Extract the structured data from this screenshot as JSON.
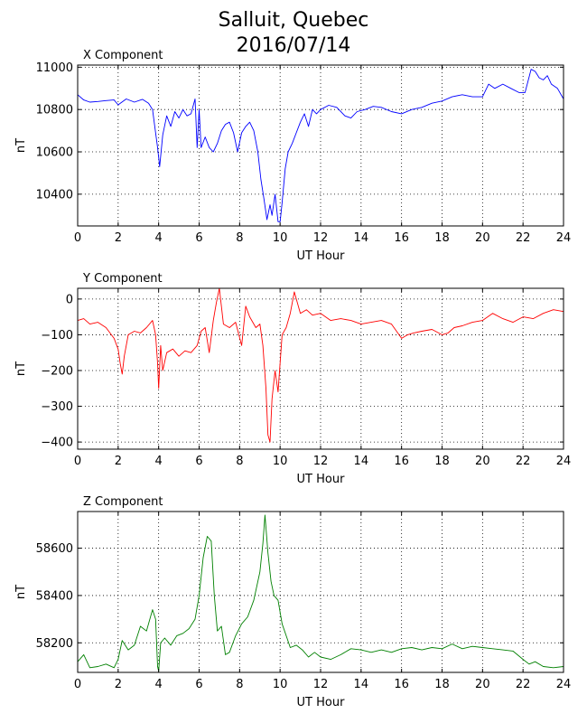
{
  "figure": {
    "title_line1": "Salluit, Quebec",
    "title_line2": "2016/07/14"
  },
  "chart_data": [
    {
      "type": "line",
      "subtitle": "X Component",
      "xlabel": "UT Hour",
      "ylabel": "nT",
      "xlim": [
        0,
        24
      ],
      "ylim": [
        10250,
        11010
      ],
      "xticks": [
        0,
        2,
        4,
        6,
        8,
        10,
        12,
        14,
        16,
        18,
        20,
        22,
        24
      ],
      "yticks": [
        10400,
        10600,
        10800,
        11000
      ],
      "grid": true,
      "color": "#0000ff",
      "x": [
        0,
        0.3,
        0.6,
        1,
        1.4,
        1.8,
        2,
        2.4,
        2.8,
        3.2,
        3.5,
        3.7,
        3.85,
        3.95,
        4.05,
        4.2,
        4.4,
        4.6,
        4.8,
        5,
        5.2,
        5.4,
        5.6,
        5.8,
        5.9,
        6.0,
        6.1,
        6.3,
        6.5,
        6.7,
        6.9,
        7.1,
        7.3,
        7.5,
        7.7,
        7.9,
        8.1,
        8.3,
        8.5,
        8.7,
        8.9,
        9.05,
        9.2,
        9.35,
        9.5,
        9.6,
        9.75,
        9.9,
        10.0,
        10.1,
        10.25,
        10.4,
        10.6,
        10.8,
        11.0,
        11.2,
        11.4,
        11.6,
        11.8,
        12.0,
        12.4,
        12.8,
        13.2,
        13.5,
        13.8,
        14.2,
        14.6,
        15,
        15.5,
        16,
        16.5,
        17,
        17.5,
        18,
        18.5,
        19,
        19.5,
        20,
        20.3,
        20.6,
        21,
        21.4,
        21.8,
        22.1,
        22.4,
        22.6,
        22.8,
        23.0,
        23.2,
        23.4,
        23.7,
        24
      ],
      "y": [
        10870,
        10845,
        10835,
        10838,
        10842,
        10845,
        10822,
        10850,
        10835,
        10848,
        10830,
        10800,
        10690,
        10620,
        10530,
        10680,
        10770,
        10720,
        10790,
        10760,
        10800,
        10770,
        10780,
        10850,
        10620,
        10800,
        10620,
        10670,
        10620,
        10600,
        10640,
        10700,
        10730,
        10740,
        10690,
        10600,
        10690,
        10720,
        10740,
        10700,
        10600,
        10470,
        10380,
        10280,
        10350,
        10300,
        10400,
        10270,
        10270,
        10360,
        10520,
        10600,
        10640,
        10690,
        10740,
        10780,
        10720,
        10800,
        10780,
        10800,
        10820,
        10810,
        10770,
        10760,
        10790,
        10800,
        10815,
        10810,
        10790,
        10780,
        10800,
        10810,
        10830,
        10840,
        10860,
        10870,
        10860,
        10860,
        10920,
        10900,
        10920,
        10900,
        10880,
        10880,
        10990,
        10980,
        10950,
        10940,
        10960,
        10920,
        10900,
        10850
      ]
    },
    {
      "type": "line",
      "subtitle": "Y Component",
      "xlabel": "UT Hour",
      "ylabel": "nT",
      "xlim": [
        0,
        24
      ],
      "ylim": [
        -420,
        30
      ],
      "xticks": [
        0,
        2,
        4,
        6,
        8,
        10,
        12,
        14,
        16,
        18,
        20,
        22,
        24
      ],
      "yticks": [
        0,
        -100,
        -200,
        -300,
        -400
      ],
      "grid": true,
      "color": "#ff0000",
      "x": [
        0,
        0.3,
        0.6,
        1,
        1.4,
        1.8,
        2.0,
        2.1,
        2.2,
        2.3,
        2.5,
        2.8,
        3.1,
        3.4,
        3.7,
        3.85,
        3.95,
        4.0,
        4.1,
        4.2,
        4.4,
        4.7,
        5.0,
        5.3,
        5.6,
        5.9,
        6.1,
        6.3,
        6.5,
        6.7,
        6.85,
        7.0,
        7.2,
        7.5,
        7.8,
        8.1,
        8.3,
        8.5,
        8.8,
        9.0,
        9.15,
        9.3,
        9.4,
        9.5,
        9.6,
        9.75,
        9.9,
        10.1,
        10.3,
        10.5,
        10.7,
        11.0,
        11.3,
        11.6,
        12.0,
        12.5,
        13,
        13.5,
        14,
        14.5,
        15,
        15.5,
        16,
        16.3,
        16.6,
        17,
        17.5,
        18,
        18.3,
        18.6,
        19,
        19.5,
        20,
        20.5,
        21,
        21.5,
        22,
        22.5,
        23,
        23.5,
        24
      ],
      "y": [
        -60,
        -55,
        -70,
        -65,
        -80,
        -110,
        -140,
        -180,
        -210,
        -160,
        -100,
        -90,
        -95,
        -80,
        -60,
        -100,
        -180,
        -250,
        -130,
        -200,
        -150,
        -140,
        -160,
        -145,
        -150,
        -130,
        -90,
        -80,
        -150,
        -60,
        -10,
        30,
        -70,
        -80,
        -65,
        -130,
        -20,
        -50,
        -80,
        -70,
        -130,
        -250,
        -380,
        -400,
        -280,
        -200,
        -260,
        -100,
        -80,
        -40,
        20,
        -40,
        -30,
        -45,
        -40,
        -60,
        -55,
        -60,
        -70,
        -65,
        -60,
        -70,
        -110,
        -100,
        -95,
        -90,
        -85,
        -100,
        -95,
        -80,
        -75,
        -65,
        -60,
        -40,
        -55,
        -65,
        -50,
        -55,
        -40,
        -30,
        -35
      ]
    },
    {
      "type": "line",
      "subtitle": "Z Component",
      "xlabel": "UT Hour",
      "ylabel": "nT",
      "xlim": [
        0,
        24
      ],
      "ylim": [
        58075,
        58755
      ],
      "xticks": [
        0,
        2,
        4,
        6,
        8,
        10,
        12,
        14,
        16,
        18,
        20,
        22,
        24
      ],
      "yticks": [
        58200,
        58400,
        58600
      ],
      "grid": true,
      "color": "#008000",
      "x": [
        0,
        0.3,
        0.6,
        1.0,
        1.4,
        1.8,
        2.0,
        2.2,
        2.5,
        2.8,
        3.1,
        3.4,
        3.7,
        3.85,
        3.95,
        4.0,
        4.1,
        4.3,
        4.6,
        4.9,
        5.2,
        5.5,
        5.8,
        6.0,
        6.2,
        6.4,
        6.6,
        6.75,
        6.9,
        7.1,
        7.3,
        7.5,
        7.8,
        8.1,
        8.4,
        8.7,
        9.0,
        9.15,
        9.25,
        9.4,
        9.55,
        9.7,
        9.9,
        10.1,
        10.3,
        10.5,
        10.8,
        11.1,
        11.4,
        11.7,
        12.0,
        12.5,
        13,
        13.5,
        14,
        14.5,
        15,
        15.5,
        16,
        16.5,
        17,
        17.5,
        18,
        18.5,
        19,
        19.5,
        20,
        20.5,
        21,
        21.5,
        22,
        22.3,
        22.6,
        23,
        23.5,
        24
      ],
      "y": [
        58120,
        58150,
        58095,
        58100,
        58110,
        58095,
        58130,
        58210,
        58170,
        58190,
        58270,
        58250,
        58340,
        58300,
        58100,
        58080,
        58200,
        58220,
        58190,
        58230,
        58240,
        58260,
        58300,
        58400,
        58560,
        58650,
        58630,
        58400,
        58250,
        58270,
        58150,
        58160,
        58230,
        58280,
        58310,
        58380,
        58500,
        58620,
        58740,
        58580,
        58460,
        58400,
        58380,
        58280,
        58230,
        58180,
        58190,
        58170,
        58140,
        58160,
        58140,
        58130,
        58150,
        58175,
        58170,
        58160,
        58170,
        58160,
        58175,
        58180,
        58170,
        58180,
        58175,
        58195,
        58175,
        58185,
        58180,
        58175,
        58170,
        58165,
        58130,
        58110,
        58120,
        58100,
        58095,
        58100
      ]
    }
  ]
}
